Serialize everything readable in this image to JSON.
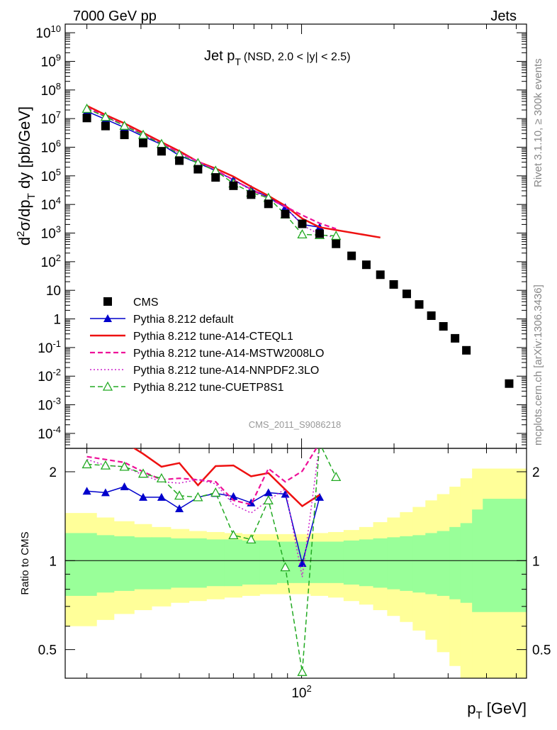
{
  "header": {
    "left": "7000 GeV pp",
    "right": "Jets"
  },
  "side_labels": {
    "rivet": "Rivet 3.1.10, ≥ 300k events",
    "mcplots": "mcplots.cern.ch [arXiv:1306.3436]"
  },
  "chart_data": [
    {
      "type": "scatter",
      "title": "Jet p_T",
      "title_sub": "(NSD, 2.0 < |y| < 2.5)",
      "watermark": "CMS_2011_S9086218",
      "xlabel": "p_T [GeV]",
      "ylabel": "d²σ/dp_T dy [pb/GeV]",
      "x_scale": "log",
      "y_scale": "log",
      "xlim": [
        17,
        540
      ],
      "ylim": [
        3e-05,
        20000000000
      ],
      "x_tick_labels": [
        "10^2"
      ],
      "y_tick_labels": [
        "10^-4",
        "10^-3",
        "10^-2",
        "10^-1",
        "1",
        "10",
        "10^2",
        "10^3",
        "10^4",
        "10^5",
        "10^6",
        "10^7",
        "10^8",
        "10^9",
        "10^10"
      ],
      "legend_position": "bottom-left",
      "series": [
        {
          "name": "CMS",
          "style": "marker-square",
          "color": "#000000",
          "x": [
            20,
            23,
            26.5,
            30.5,
            35,
            40,
            46,
            52.5,
            60,
            68.5,
            78,
            88.5,
            100.5,
            114.5,
            129.5,
            145.5,
            162.5,
            180.5,
            199.5,
            220,
            241.5,
            264.5,
            289.5,
            316,
            344,
            373.5,
            474
          ],
          "y": [
            10500000,
            5500000,
            2700000,
            1400000,
            720000,
            340000,
            170000,
            88000,
            45000,
            22000,
            10500,
            4600,
            2100,
            950,
            420,
            160,
            78,
            35,
            16,
            7.5,
            3.2,
            1.3,
            0.55,
            0.21,
            0.08,
            null,
            0.0055
          ]
        },
        {
          "name": "Pythia 8.212 default",
          "style": "solid-triangle",
          "color": "#0000cc",
          "x": [
            20,
            23,
            26.5,
            30.5,
            35,
            40,
            46,
            52.5,
            60,
            68.5,
            78,
            88.5,
            100.5,
            114.5
          ],
          "y": [
            18000000,
            9400000,
            4900000,
            2400000,
            1250000,
            510000,
            280000,
            150000,
            72000,
            34000,
            18000,
            7800,
            2000,
            1600
          ]
        },
        {
          "name": "Pythia 8.212 tune-A14-CTEQL1",
          "style": "solid",
          "color": "#ee1111",
          "x": [
            20,
            23,
            26.5,
            30.5,
            35,
            40,
            46,
            52.5,
            60,
            68.5,
            78,
            88.5,
            100.5,
            114.5,
            129.5,
            145.5,
            162.5,
            180.5
          ],
          "y": [
            28000000,
            13500000,
            6800000,
            3200000,
            1500000,
            730000,
            310000,
            180000,
            94000,
            42000,
            20000,
            9000,
            3200,
            1600,
            null,
            null,
            null,
            700
          ]
        },
        {
          "name": "Pythia 8.212 tune-A14-MSTW2008LO",
          "style": "dashed",
          "color": "#ee1199",
          "x": [
            20,
            23,
            26.5,
            30.5,
            35,
            40,
            46,
            52.5,
            60,
            68.5,
            78,
            88.5,
            100.5,
            114.5,
            129.5
          ],
          "y": [
            24000000,
            12000000,
            5800000,
            2800000,
            1350000,
            640000,
            320000,
            160000,
            72000,
            34000,
            16000,
            8500,
            4200,
            2200,
            1400
          ]
        },
        {
          "name": "Pythia 8.212 tune-A14-NNPDF2.3LO",
          "style": "dotted",
          "color": "#cc22cc",
          "x": [
            20,
            23,
            26.5,
            30.5,
            35,
            40,
            46,
            52.5,
            60,
            68.5,
            78,
            88.5,
            100.5,
            114.5,
            129.5
          ],
          "y": [
            23000000,
            11500000,
            5700000,
            2700000,
            1300000,
            620000,
            320000,
            160000,
            69000,
            32000,
            16000,
            8000,
            1900,
            900,
            700
          ]
        },
        {
          "name": "Pythia 8.212 tune-CUETP8S1",
          "style": "dashed-open-triangle",
          "color": "#22aa22",
          "x": [
            20,
            23,
            26.5,
            30.5,
            35,
            40,
            46,
            52.5,
            60,
            68.5,
            78,
            88.5,
            100.5,
            114.5,
            129.5
          ],
          "y": [
            22000000,
            11500000,
            5600000,
            2700000,
            1300000,
            560000,
            280000,
            150000,
            54000,
            26000,
            17000,
            4500,
            900,
            850,
            800
          ]
        }
      ]
    },
    {
      "type": "scatter",
      "ylabel": "Ratio to CMS",
      "x_scale": "log",
      "y_scale": "log",
      "xlim": [
        17,
        540
      ],
      "ylim": [
        0.4,
        2.4
      ],
      "y_tick_labels": [
        "0.5",
        "1",
        "2"
      ],
      "bands": [
        {
          "name": "stat",
          "color": "#99ff99",
          "edges": [
            17,
            21.5,
            24.5,
            28.5,
            32.5,
            37.5,
            43,
            49,
            56,
            64,
            73,
            83,
            94,
            107,
            122,
            137,
            154,
            171,
            190,
            209,
            230,
            253,
            276,
            303,
            329,
            359,
            389,
            540
          ],
          "lo": [
            0.76,
            0.78,
            0.79,
            0.8,
            0.8,
            0.81,
            0.81,
            0.82,
            0.82,
            0.83,
            0.83,
            0.84,
            0.84,
            0.84,
            0.84,
            0.83,
            0.82,
            0.81,
            0.8,
            0.79,
            0.78,
            0.77,
            0.76,
            0.74,
            0.72,
            0.67,
            0.67
          ],
          "hi": [
            1.24,
            1.22,
            1.21,
            1.2,
            1.2,
            1.19,
            1.19,
            1.18,
            1.18,
            1.17,
            1.17,
            1.16,
            1.16,
            1.16,
            1.16,
            1.17,
            1.18,
            1.19,
            1.2,
            1.21,
            1.22,
            1.24,
            1.26,
            1.3,
            1.34,
            1.49,
            1.62
          ]
        },
        {
          "name": "total",
          "color": "#ffff99",
          "edges": [
            17,
            21.5,
            24.5,
            28.5,
            32.5,
            37.5,
            43,
            49,
            56,
            64,
            73,
            83,
            94,
            107,
            122,
            137,
            154,
            171,
            190,
            209,
            230,
            253,
            276,
            303,
            329,
            359,
            389,
            540
          ],
          "lo": [
            0.6,
            0.63,
            0.66,
            0.68,
            0.7,
            0.72,
            0.73,
            0.74,
            0.75,
            0.76,
            0.77,
            0.77,
            0.77,
            0.76,
            0.75,
            0.73,
            0.71,
            0.68,
            0.65,
            0.62,
            0.58,
            0.54,
            0.49,
            0.44,
            0.4,
            0.4,
            0.4
          ],
          "hi": [
            1.45,
            1.4,
            1.36,
            1.33,
            1.3,
            1.28,
            1.26,
            1.25,
            1.24,
            1.23,
            1.23,
            1.23,
            1.23,
            1.24,
            1.25,
            1.27,
            1.3,
            1.35,
            1.4,
            1.46,
            1.52,
            1.6,
            1.68,
            1.78,
            1.9,
            2.05,
            2.05
          ]
        }
      ],
      "series": [
        {
          "name": "Pythia 8.212 default",
          "color": "#0000cc",
          "x": [
            20,
            23,
            26.5,
            30.5,
            35,
            40,
            46,
            52.5,
            60,
            68.5,
            78,
            88.5,
            100.5,
            114.5
          ],
          "y": [
            1.72,
            1.7,
            1.78,
            1.64,
            1.64,
            1.5,
            1.64,
            1.69,
            1.65,
            1.57,
            1.7,
            1.68,
            0.98,
            1.64
          ]
        },
        {
          "name": "Pythia 8.212 tune-A14-CTEQL1",
          "color": "#ee1111",
          "x": [
            20,
            23,
            26.5,
            30.5,
            35,
            40,
            46,
            52.5,
            60,
            68.5,
            78,
            88.5,
            100.5,
            114.5
          ],
          "y": [
            2.6,
            2.45,
            2.52,
            2.3,
            2.08,
            2.14,
            1.8,
            2.09,
            2.1,
            1.93,
            1.98,
            1.74,
            1.53,
            1.67
          ]
        },
        {
          "name": "Pythia 8.212 tune-A14-MSTW2008LO",
          "color": "#ee1199",
          "x": [
            20,
            23,
            26.5,
            30.5,
            35,
            40,
            46,
            52.5,
            60,
            68.5,
            78,
            88.5,
            100.5,
            114.5
          ],
          "y": [
            2.25,
            2.2,
            2.15,
            2.0,
            1.88,
            1.9,
            1.88,
            1.85,
            1.6,
            1.55,
            2.05,
            1.85,
            2.01,
            2.5
          ]
        },
        {
          "name": "Pythia 8.212 tune-A14-NNPDF2.3LO",
          "color": "#cc22cc",
          "x": [
            20,
            23,
            26.5,
            30.5,
            35,
            40,
            46,
            52.5,
            60,
            68.5,
            78,
            88.5,
            100.5,
            114.5
          ],
          "y": [
            2.2,
            2.1,
            2.08,
            1.95,
            1.85,
            1.83,
            1.88,
            1.82,
            1.55,
            1.45,
            1.6,
            1.75,
            0.88,
            2.5
          ]
        },
        {
          "name": "Pythia 8.212 tune-CUETP8S1",
          "color": "#22aa22",
          "x": [
            20,
            23,
            26.5,
            30.5,
            35,
            40,
            46,
            52.5,
            60,
            68.5,
            78,
            88.5,
            100.5,
            114.5,
            129.5
          ],
          "y": [
            2.12,
            2.1,
            2.08,
            1.97,
            1.9,
            1.66,
            1.64,
            1.7,
            1.22,
            1.18,
            1.6,
            0.95,
            0.42,
            2.5,
            1.92
          ]
        }
      ]
    }
  ]
}
